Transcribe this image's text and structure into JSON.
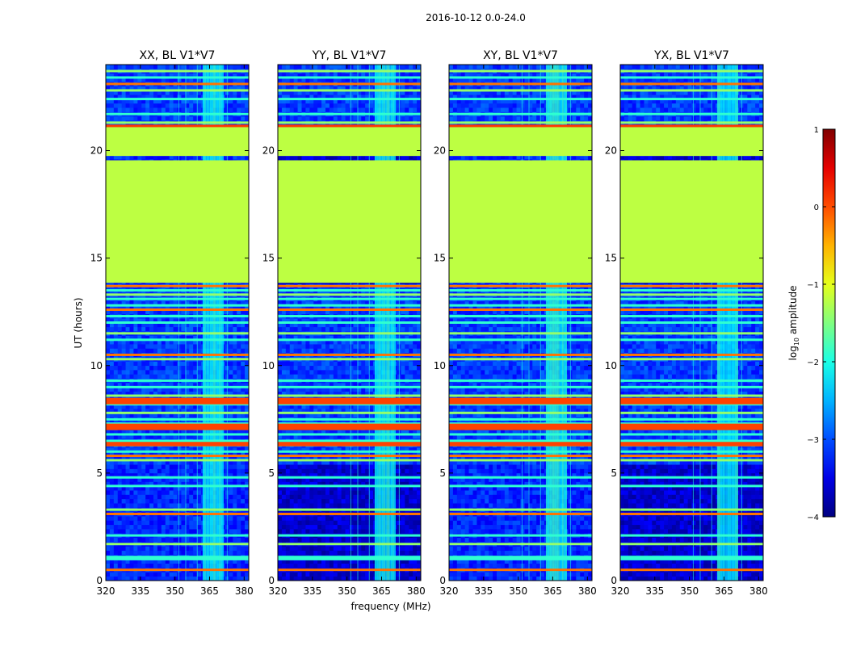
{
  "figure": {
    "suptitle": "2016-10-12 0.0-24.0"
  },
  "chart_data": {
    "type": "heatmap",
    "title": "2016-10-12 0.0-24.0",
    "xlabel": "frequency (MHz)",
    "ylabel": "UT (hours)",
    "xlim": [
      320,
      382
    ],
    "ylim": [
      0,
      24
    ],
    "x_ticks": [
      "320",
      "335",
      "350",
      "365",
      "380"
    ],
    "x_tick_values": [
      320,
      335,
      350,
      365,
      380
    ],
    "y_ticks": [
      "0",
      "5",
      "10",
      "15",
      "20"
    ],
    "y_tick_values": [
      0,
      5,
      10,
      15,
      20
    ],
    "panels": [
      {
        "title": "XX, BL V1*V7",
        "polarization": "XX",
        "baseline": "V1*V7"
      },
      {
        "title": "YY, BL V1*V7",
        "polarization": "YY",
        "baseline": "V1*V7"
      },
      {
        "title": "XY, BL V1*V7",
        "polarization": "XY",
        "baseline": "V1*V7"
      },
      {
        "title": "YX, BL V1*V7",
        "polarization": "YX",
        "baseline": "V1*V7"
      }
    ],
    "features": {
      "flagged_blocks": [
        {
          "ut_start": 13.85,
          "ut_end": 19.55,
          "level": -1.2
        },
        {
          "ut_start": 19.75,
          "ut_end": 21.1,
          "level": -1.2
        }
      ],
      "flagged_block_edge_line_ut": 21.15,
      "bright_band_mhz": [
        362,
        371
      ],
      "rfi_lines_ut": [
        0.5,
        1.0,
        1.1,
        1.7,
        2.1,
        3.1,
        3.3,
        4.4,
        4.8,
        5.6,
        5.8,
        6.0,
        6.3,
        6.5,
        6.8,
        7.1,
        7.3,
        7.5,
        7.8,
        8.2,
        8.4,
        8.6,
        9.0,
        9.3,
        10.3,
        10.5,
        11.2,
        11.5,
        12.0,
        12.3,
        12.6,
        12.8,
        13.1,
        13.3,
        13.5,
        13.7,
        21.3,
        21.7,
        22.4,
        22.8,
        23.1,
        23.4,
        23.7
      ]
    },
    "colorbar": {
      "label_prefix": "log",
      "label_subscript": "10",
      "label_suffix": " amplitude",
      "range": [
        -4,
        1
      ],
      "ticks": [
        "1",
        "0",
        "−1",
        "−2",
        "−3",
        "−4"
      ],
      "tick_values": [
        1,
        0,
        -1,
        -2,
        -3,
        -4
      ],
      "colormap": "jet"
    }
  }
}
